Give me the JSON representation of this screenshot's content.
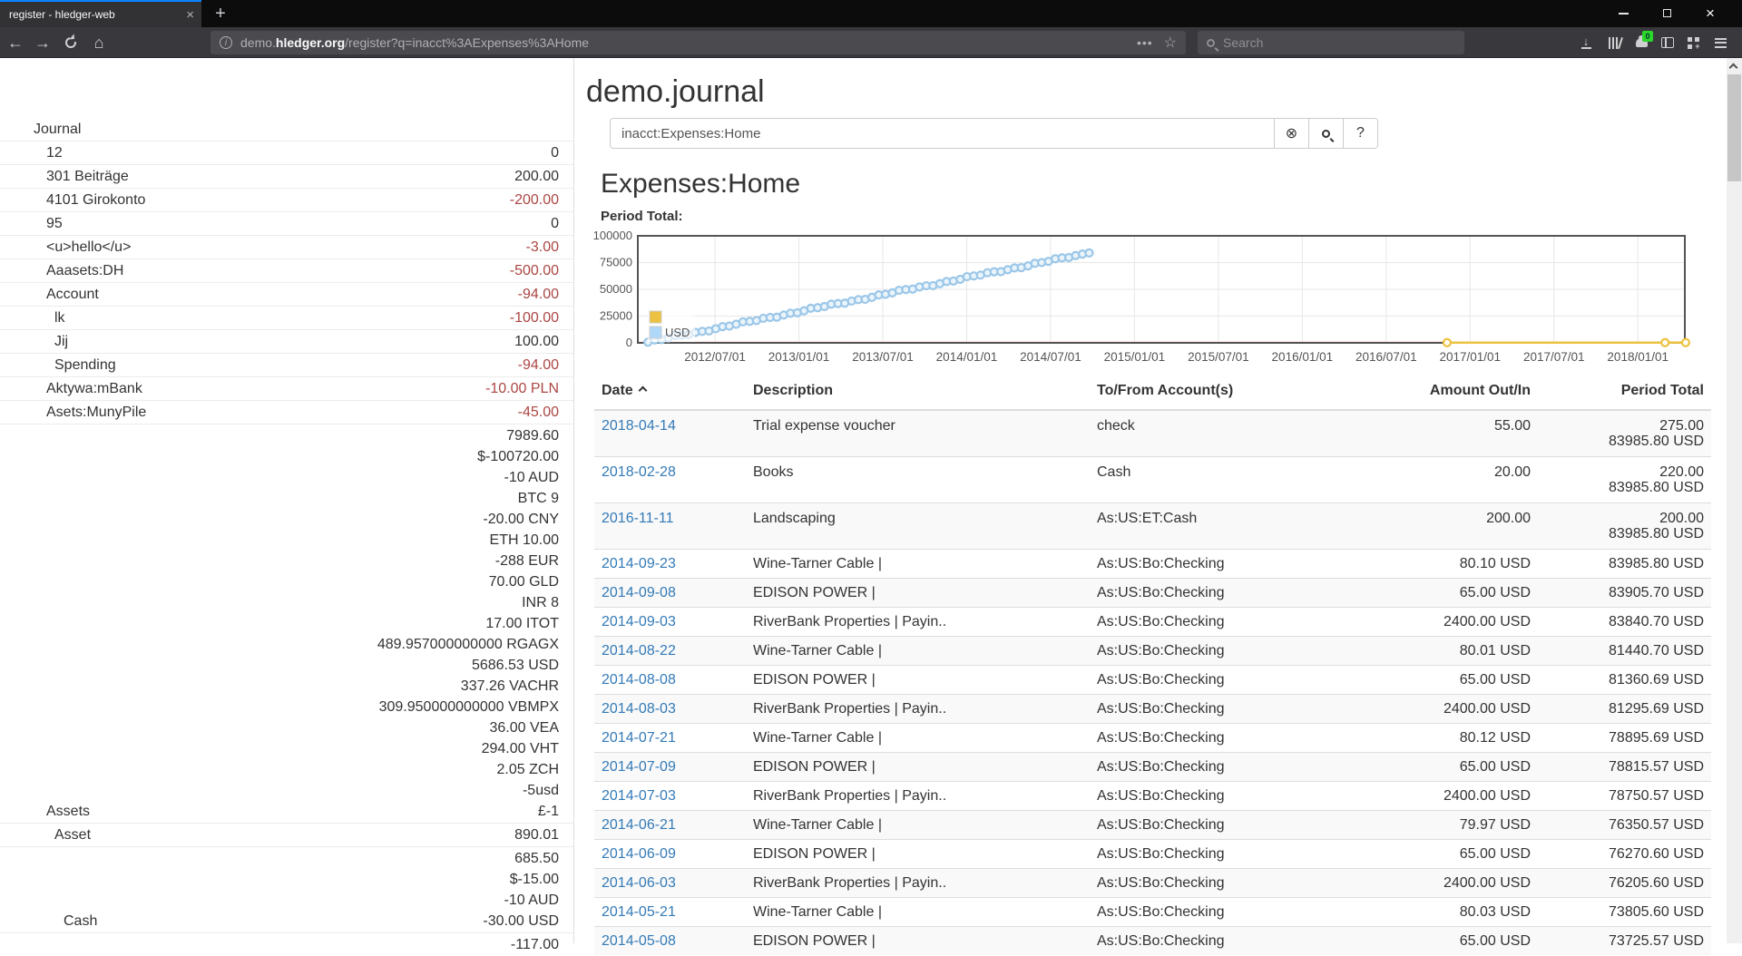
{
  "browser": {
    "tab": {
      "title": "register - hledger-web"
    },
    "url": {
      "prefix": "demo.",
      "domain": "hledger.org",
      "path": "/register?q=inacct%3AExpenses%3AHome"
    },
    "search_placeholder": "Search",
    "downloads_badge": "0"
  },
  "sidebar": {
    "rows": [
      {
        "name": "Journal",
        "level": 0,
        "amounts": []
      },
      {
        "name": "12",
        "level": 1,
        "amounts": [
          {
            "text": "0",
            "neg": false
          }
        ]
      },
      {
        "name": "301 Beiträge",
        "level": 1,
        "amounts": [
          {
            "text": "200.00",
            "neg": false
          }
        ]
      },
      {
        "name": "4101 Girokonto",
        "level": 1,
        "amounts": [
          {
            "text": "-200.00",
            "neg": true
          }
        ]
      },
      {
        "name": "95",
        "level": 1,
        "amounts": [
          {
            "text": "0",
            "neg": false
          }
        ]
      },
      {
        "name": "<u>hello</u>",
        "level": 1,
        "amounts": [
          {
            "text": "-3.00",
            "neg": true
          }
        ]
      },
      {
        "name": "Aaasets:DH",
        "level": 1,
        "amounts": [
          {
            "text": "-500.00",
            "neg": true
          }
        ]
      },
      {
        "name": "Account",
        "level": 1,
        "amounts": [
          {
            "text": "-94.00",
            "neg": true
          }
        ]
      },
      {
        "name": "lk",
        "level": 2,
        "amounts": [
          {
            "text": "-100.00",
            "neg": true
          }
        ]
      },
      {
        "name": "Jij",
        "level": 2,
        "amounts": [
          {
            "text": "100.00",
            "neg": false
          }
        ]
      },
      {
        "name": "Spending",
        "level": 2,
        "amounts": [
          {
            "text": "-94.00",
            "neg": true
          }
        ]
      },
      {
        "name": "Aktywa:mBank",
        "level": 1,
        "amounts": [
          {
            "text": "-10.00 PLN",
            "neg": true
          }
        ]
      },
      {
        "name": "Asets:MunyPile",
        "level": 1,
        "amounts": [
          {
            "text": "-45.00",
            "neg": true
          }
        ]
      },
      {
        "name": "Assets",
        "level": 1,
        "amounts": [
          {
            "text": "7989.60",
            "neg": false
          },
          {
            "text": "$-100720.00",
            "neg": false
          },
          {
            "text": "-10 AUD",
            "neg": false
          },
          {
            "text": "BTC 9",
            "neg": false
          },
          {
            "text": "-20.00 CNY",
            "neg": false
          },
          {
            "text": "ETH 10.00",
            "neg": false
          },
          {
            "text": "-288 EUR",
            "neg": false
          },
          {
            "text": "70.00 GLD",
            "neg": false
          },
          {
            "text": "INR 8",
            "neg": false
          },
          {
            "text": "17.00 ITOT",
            "neg": false
          },
          {
            "text": "489.957000000000 RGAGX",
            "neg": false
          },
          {
            "text": "5686.53 USD",
            "neg": false
          },
          {
            "text": "337.26 VACHR",
            "neg": false
          },
          {
            "text": "309.950000000000 VBMPX",
            "neg": false
          },
          {
            "text": "36.00 VEA",
            "neg": false
          },
          {
            "text": "294.00 VHT",
            "neg": false
          },
          {
            "text": "2.05 ZCH",
            "neg": false
          },
          {
            "text": "-5usd",
            "neg": false
          },
          {
            "text": "£-1",
            "neg": false
          }
        ]
      },
      {
        "name": "Asset",
        "level": 2,
        "amounts": [
          {
            "text": "890.01",
            "neg": false
          }
        ]
      },
      {
        "name": "Cash",
        "level": 3,
        "amounts": [
          {
            "text": "685.50",
            "neg": false
          },
          {
            "text": "$-15.00",
            "neg": false
          },
          {
            "text": "-10 AUD",
            "neg": false
          },
          {
            "text": "-30.00 USD",
            "neg": false
          }
        ]
      },
      {
        "name": "",
        "level": 3,
        "amounts": [
          {
            "text": "-117.00",
            "neg": false
          }
        ]
      }
    ]
  },
  "main": {
    "title": "demo.journal",
    "search": {
      "value": "inacct:Expenses:Home",
      "clear_label": "⊗",
      "help_label": "?"
    },
    "account_title": "Expenses:Home",
    "chart_label": "Period Total:",
    "table": {
      "columns": [
        "Date",
        "Description",
        "To/From Account(s)",
        "Amount Out/In",
        "Period Total"
      ],
      "rows": [
        {
          "date": "2018-04-14",
          "desc": "Trial expense voucher",
          "acct": "check",
          "amount": "55.00",
          "total": [
            "275.00",
            "83985.80 USD"
          ]
        },
        {
          "date": "2018-02-28",
          "desc": "Books",
          "acct": "Cash",
          "amount": "20.00",
          "total": [
            "220.00",
            "83985.80 USD"
          ]
        },
        {
          "date": "2016-11-11",
          "desc": "Landscaping",
          "acct": "As:US:ET:Cash",
          "amount": "200.00",
          "total": [
            "200.00",
            "83985.80 USD"
          ]
        },
        {
          "date": "2014-09-23",
          "desc": "Wine-Tarner Cable |",
          "acct": "As:US:Bo:Checking",
          "amount": "80.10 USD",
          "total": [
            "83985.80 USD"
          ]
        },
        {
          "date": "2014-09-08",
          "desc": "EDISON POWER |",
          "acct": "As:US:Bo:Checking",
          "amount": "65.00 USD",
          "total": [
            "83905.70 USD"
          ]
        },
        {
          "date": "2014-09-03",
          "desc": "RiverBank Properties | Payin..",
          "acct": "As:US:Bo:Checking",
          "amount": "2400.00 USD",
          "total": [
            "83840.70 USD"
          ]
        },
        {
          "date": "2014-08-22",
          "desc": "Wine-Tarner Cable |",
          "acct": "As:US:Bo:Checking",
          "amount": "80.01 USD",
          "total": [
            "81440.70 USD"
          ]
        },
        {
          "date": "2014-08-08",
          "desc": "EDISON POWER |",
          "acct": "As:US:Bo:Checking",
          "amount": "65.00 USD",
          "total": [
            "81360.69 USD"
          ]
        },
        {
          "date": "2014-08-03",
          "desc": "RiverBank Properties | Payin..",
          "acct": "As:US:Bo:Checking",
          "amount": "2400.00 USD",
          "total": [
            "81295.69 USD"
          ]
        },
        {
          "date": "2014-07-21",
          "desc": "Wine-Tarner Cable |",
          "acct": "As:US:Bo:Checking",
          "amount": "80.12 USD",
          "total": [
            "78895.69 USD"
          ]
        },
        {
          "date": "2014-07-09",
          "desc": "EDISON POWER |",
          "acct": "As:US:Bo:Checking",
          "amount": "65.00 USD",
          "total": [
            "78815.57 USD"
          ]
        },
        {
          "date": "2014-07-03",
          "desc": "RiverBank Properties | Payin..",
          "acct": "As:US:Bo:Checking",
          "amount": "2400.00 USD",
          "total": [
            "78750.57 USD"
          ]
        },
        {
          "date": "2014-06-21",
          "desc": "Wine-Tarner Cable |",
          "acct": "As:US:Bo:Checking",
          "amount": "79.97 USD",
          "total": [
            "76350.57 USD"
          ]
        },
        {
          "date": "2014-06-09",
          "desc": "EDISON POWER |",
          "acct": "As:US:Bo:Checking",
          "amount": "65.00 USD",
          "total": [
            "76270.60 USD"
          ]
        },
        {
          "date": "2014-06-03",
          "desc": "RiverBank Properties | Payin..",
          "acct": "As:US:Bo:Checking",
          "amount": "2400.00 USD",
          "total": [
            "76205.60 USD"
          ]
        },
        {
          "date": "2014-05-21",
          "desc": "Wine-Tarner Cable |",
          "acct": "As:US:Bo:Checking",
          "amount": "80.03 USD",
          "total": [
            "73805.60 USD"
          ]
        },
        {
          "date": "2014-05-08",
          "desc": "EDISON POWER |",
          "acct": "As:US:Bo:Checking",
          "amount": "65.00 USD",
          "total": [
            "73725.57 USD"
          ]
        }
      ]
    }
  },
  "chart_data": {
    "type": "line",
    "title": "Period Total:",
    "xlabel": "",
    "ylabel": "",
    "ylim": [
      0,
      100000
    ],
    "yticks": [
      0,
      25000,
      50000,
      75000,
      100000
    ],
    "xlim_years": [
      2012.04,
      2018.28
    ],
    "xticks": [
      {
        "t": 2012.5,
        "label": "2012/07/01"
      },
      {
        "t": 2013.0,
        "label": "2013/01/01"
      },
      {
        "t": 2013.5,
        "label": "2013/07/01"
      },
      {
        "t": 2014.0,
        "label": "2014/01/01"
      },
      {
        "t": 2014.5,
        "label": "2014/07/01"
      },
      {
        "t": 2015.0,
        "label": "2015/01/01"
      },
      {
        "t": 2015.5,
        "label": "2015/07/01"
      },
      {
        "t": 2016.0,
        "label": "2016/01/01"
      },
      {
        "t": 2016.5,
        "label": "2016/07/01"
      },
      {
        "t": 2017.0,
        "label": "2017/01/01"
      },
      {
        "t": 2017.5,
        "label": "2017/07/01"
      },
      {
        "t": 2018.0,
        "label": "2018/01/01"
      }
    ],
    "grid": true,
    "grid_color": "#e7e7e7",
    "border_color": "#545454",
    "zero_line_color": "#ff8f8f",
    "legend_position": "bottom-left-inside",
    "legend": [
      {
        "label": "",
        "color": "#edc240"
      },
      {
        "label": "USD",
        "color": "#afd8f8"
      }
    ],
    "series": [
      {
        "name": "",
        "color": "#edc240",
        "points_year_value": [
          [
            2016.863,
            200
          ],
          [
            2018.162,
            220
          ],
          [
            2018.285,
            275
          ]
        ]
      },
      {
        "name": "USD",
        "color": "#afd8f8",
        "render_ramp": {
          "n": 66,
          "t_start": 2012.1,
          "t_end": 2014.73,
          "v_start": 600,
          "v_end": 83985.8
        },
        "known_cumulative_points": [
          [
            "2014-05-08",
            73725.57
          ],
          [
            "2014-05-21",
            73805.6
          ],
          [
            "2014-06-03",
            76205.6
          ],
          [
            "2014-06-09",
            76270.6
          ],
          [
            "2014-06-21",
            76350.57
          ],
          [
            "2014-07-03",
            78750.57
          ],
          [
            "2014-07-09",
            78815.57
          ],
          [
            "2014-07-21",
            78895.69
          ],
          [
            "2014-08-03",
            81295.69
          ],
          [
            "2014-08-08",
            81360.69
          ],
          [
            "2014-08-22",
            81440.7
          ],
          [
            "2014-09-03",
            83840.7
          ],
          [
            "2014-09-08",
            83905.7
          ],
          [
            "2014-09-23",
            83985.8
          ]
        ]
      }
    ]
  }
}
